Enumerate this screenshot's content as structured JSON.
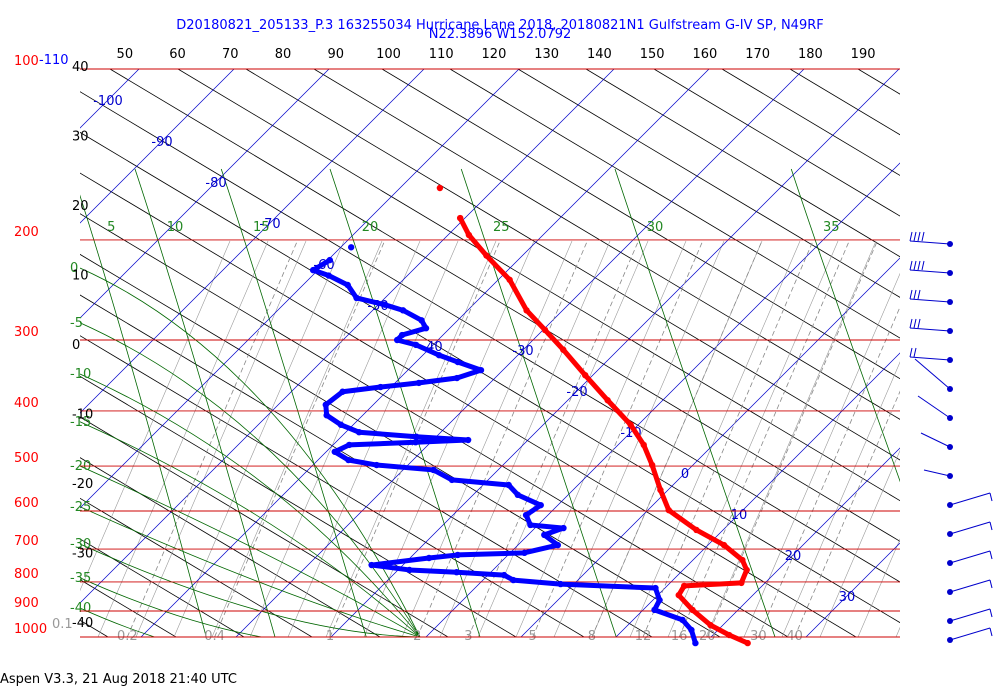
{
  "chart_data": {
    "type": "skewt",
    "title": "D20180821_205133_P.3 163255034 Hurricane Lane 2018, 20180821N1 Gulfstream G-IV SP, N49RF",
    "subtitle": "N22.3896 W152.0792",
    "log_y": true,
    "ylim": [
      1000,
      100
    ],
    "yticks": [
      100,
      200,
      300,
      400,
      500,
      600,
      700,
      800,
      900,
      1000
    ],
    "top_left_isotherm": -110,
    "isotherms": [
      -100,
      -90,
      -80,
      -70,
      -60,
      -50,
      -40,
      -30,
      -20,
      -10,
      0,
      10,
      20,
      30
    ],
    "x2lim": [
      41.5,
      197
    ],
    "x2ticks": [
      50,
      60,
      70,
      80,
      90,
      100,
      110,
      120,
      130,
      140,
      150,
      160,
      170,
      180,
      190
    ],
    "height_ticks": [
      40,
      30,
      20,
      10,
      0,
      -10,
      -20,
      -30,
      -40
    ],
    "theta_top": [
      5,
      10,
      15,
      20,
      25,
      30,
      35
    ],
    "theta_left": [
      0,
      -5,
      -10,
      -15,
      -20,
      -25,
      -30,
      -35,
      -40
    ],
    "mixing_ratios": [
      0.2,
      0.4,
      1,
      2,
      3,
      5,
      8,
      12,
      16,
      20,
      30,
      40
    ],
    "mixing_ratio_left": 0.1,
    "series": [
      {
        "color": "#ff0000",
        "pressure": [
          162,
          183,
          196,
          213,
          235,
          266,
          288,
          312,
          346,
          383,
          423,
          459,
          498,
          551,
          598,
          648,
          689,
          732,
          762,
          803,
          813,
          844,
          896,
          953,
          992,
          1025
        ],
        "values": [
          -55.8,
          -50.5,
          -47.8,
          -43.8,
          -38.8,
          -33.8,
          -29.8,
          -25.8,
          -20.8,
          -15.8,
          -10.8,
          -7.3,
          -4.3,
          -0.8,
          2.2,
          7.2,
          11.7,
          15.2,
          16.7,
          17.5,
          11.8,
          12.2,
          15.2,
          18.7,
          21.7,
          24.5
        ]
      },
      {
        "color": "#0000ff",
        "pressure": [
          206,
          217,
          226,
          231,
          240,
          253,
          260,
          266,
          277,
          286,
          294,
          300,
          306,
          319,
          328,
          339,
          350,
          357,
          363,
          370,
          390,
          407,
          423,
          436,
          444,
          450,
          454,
          459,
          472,
          488,
          498,
          508,
          529,
          540,
          562,
          586,
          610,
          635,
          643,
          661,
          689,
          711,
          717,
          726,
          747,
          762,
          769,
          778,
          794,
          807,
          820,
          861,
          896,
          933,
          972,
          1025
        ],
        "values": [
          -58.9,
          -59.8,
          -60.5,
          -58.3,
          -55.3,
          -53.0,
          -49.3,
          -46.8,
          -43.8,
          -42.5,
          -44.3,
          -44.3,
          -41.8,
          -38.3,
          -35.6,
          -32.3,
          -34.0,
          -37.5,
          -41.1,
          -44.6,
          -45.0,
          -43.8,
          -41.3,
          -38.6,
          -32.1,
          -26.3,
          -31.6,
          -38.3,
          -39.1,
          -36.8,
          -33.3,
          -26.8,
          -23.8,
          -17.3,
          -15.3,
          -11.8,
          -12.3,
          -10.8,
          -7.0,
          -8.3,
          -5.8,
          -8.5,
          -15.3,
          -18.0,
          -23.3,
          -18.8,
          -13.6,
          -8.3,
          -6.8,
          -1.4,
          9.0,
          10.7,
          11.2,
          15.2,
          17.2,
          19.0
        ]
      }
    ],
    "footer": "Aspen V3.3, 21 Aug 2018  21:40 UTC"
  }
}
